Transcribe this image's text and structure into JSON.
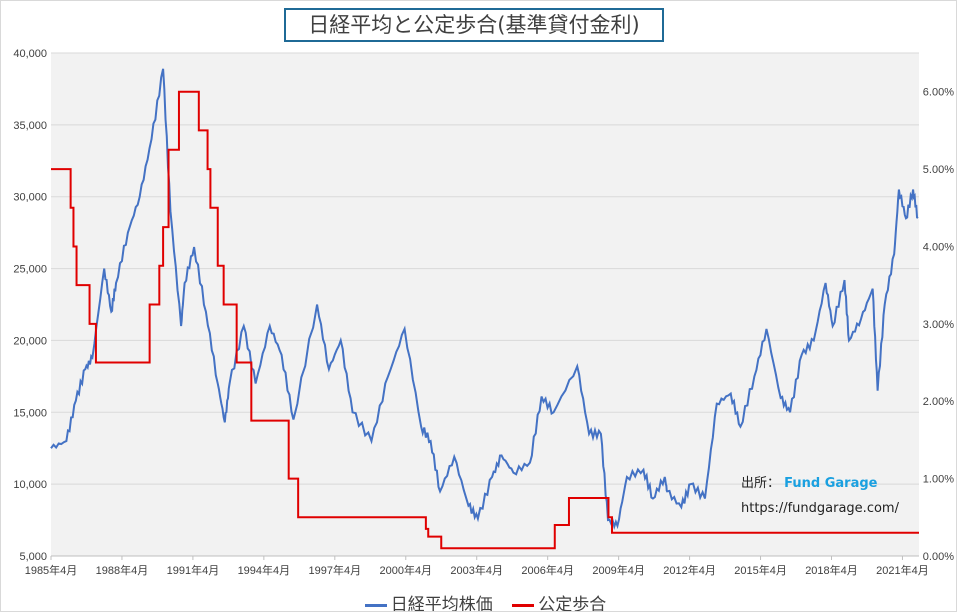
{
  "chart_data": {
    "type": "line",
    "title": "日経平均と公定歩合(基準貸付金利)",
    "y_left": {
      "min": 5000,
      "max": 40000,
      "step": 5000,
      "ticks": [
        "5,000",
        "10,000",
        "15,000",
        "20,000",
        "25,000",
        "30,000",
        "35,000",
        "40,000"
      ]
    },
    "y_right": {
      "min": 0,
      "max": 6.5,
      "ticks": [
        "0.00%",
        "1.00%",
        "2.00%",
        "3.00%",
        "4.00%",
        "5.00%",
        "6.00%"
      ]
    },
    "x_range": [
      1985.25,
      2021.95
    ],
    "x_ticks": [
      "1985年4月",
      "1988年4月",
      "1991年4月",
      "1994年4月",
      "1997年4月",
      "2000年4月",
      "2003年4月",
      "2006年4月",
      "2009年4月",
      "2012年4月",
      "2015年4月",
      "2018年4月",
      "2021年4月"
    ],
    "grid": true,
    "legend_position": "bottom",
    "series": [
      {
        "name": "日経平均株価",
        "axis": "left",
        "color": "#4472c4",
        "x": [
          1985.25,
          1985.9,
          1986.3,
          1986.7,
          1987.0,
          1987.5,
          1987.8,
          1988.0,
          1988.5,
          1989.0,
          1989.5,
          1989.99,
          1990.3,
          1990.75,
          1990.9,
          1991.3,
          1991.8,
          1992.3,
          1992.6,
          1992.8,
          1993.4,
          1993.9,
          1994.5,
          1995.0,
          1995.5,
          1996.5,
          1997.0,
          1997.5,
          1998.0,
          1998.8,
          1999.5,
          2000.2,
          2000.9,
          2001.3,
          2001.7,
          2002.3,
          2002.9,
          2003.3,
          2003.9,
          2004.3,
          2004.8,
          2005.5,
          2005.99,
          2006.5,
          2007.5,
          2008.0,
          2008.5,
          2008.8,
          2009.2,
          2009.6,
          2010.3,
          2010.7,
          2011.2,
          2011.3,
          2011.9,
          2012.3,
          2012.9,
          2013.4,
          2013.99,
          2014.4,
          2014.99,
          2015.5,
          2016.1,
          2016.5,
          2016.99,
          2017.5,
          2018.0,
          2018.3,
          2018.8,
          2018.99,
          2019.5,
          2019.99,
          2020.2,
          2020.5,
          2020.9,
          2021.1,
          2021.4,
          2021.7,
          2021.9
        ],
        "values": [
          12500,
          13000,
          15800,
          18000,
          18800,
          25000,
          22000,
          24000,
          27500,
          30000,
          34000,
          38900,
          29000,
          21000,
          24000,
          26500,
          22000,
          17000,
          14300,
          17000,
          21000,
          17000,
          21000,
          19000,
          14500,
          22500,
          18000,
          20000,
          15000,
          13000,
          17500,
          20800,
          14000,
          13000,
          9500,
          11900,
          8500,
          7600,
          10500,
          12000,
          10800,
          11500,
          16100,
          15000,
          18200,
          13500,
          13500,
          7500,
          7100,
          10500,
          11000,
          9000,
          10500,
          9500,
          8400,
          10000,
          9000,
          15600,
          16300,
          14000,
          17500,
          20800,
          16000,
          15000,
          19000,
          20000,
          24000,
          21000,
          24200,
          20000,
          21500,
          23600,
          16500,
          22500,
          26000,
          30500,
          28500,
          30500,
          28500
        ]
      },
      {
        "name": "公定歩合",
        "axis": "right",
        "color": "#e00000",
        "step": true,
        "x": [
          1985.25,
          1986.08,
          1986.2,
          1986.33,
          1986.88,
          1987.15,
          1989.42,
          1989.83,
          1989.99,
          1990.22,
          1990.66,
          1991.5,
          1991.87,
          1991.99,
          1992.3,
          1992.55,
          1993.1,
          1993.72,
          1995.3,
          1995.7,
          2001.1,
          2001.2,
          2001.75,
          2006.55,
          2007.15,
          2008.82,
          2008.97,
          2021.95
        ],
        "values": [
          5.0,
          4.5,
          4.0,
          3.5,
          3.0,
          2.5,
          3.25,
          3.75,
          4.25,
          5.25,
          6.0,
          5.5,
          5.0,
          4.5,
          3.75,
          3.25,
          2.5,
          1.75,
          1.0,
          0.5,
          0.35,
          0.25,
          0.1,
          0.4,
          0.75,
          0.5,
          0.3,
          0.3
        ]
      }
    ]
  },
  "source": {
    "label": "出所：",
    "name": "Fund Garage",
    "url": "https://fundgarage.com/"
  }
}
